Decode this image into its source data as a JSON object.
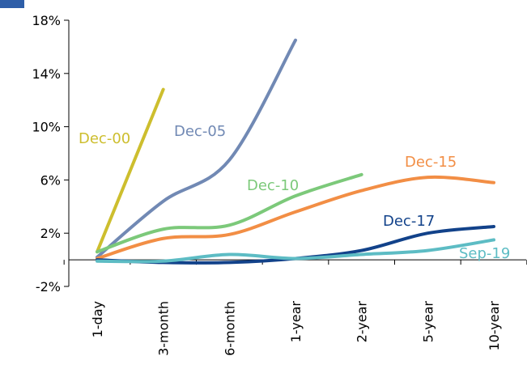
{
  "chart_data": {
    "type": "line",
    "title": "",
    "xlabel": "",
    "ylabel": "",
    "categories": [
      "1-day",
      "3-month",
      "6-month",
      "1-year",
      "2-year",
      "5-year",
      "10-year"
    ],
    "ylim": [
      -2,
      18
    ],
    "yticks": [
      -2,
      2,
      6,
      10,
      14,
      18
    ],
    "ytick_labels": [
      "-2%",
      "2%",
      "6%",
      "10%",
      "14%",
      "18%"
    ],
    "grid": false,
    "legend": "inline labels",
    "series": [
      {
        "name": "Dec-00",
        "color": "#CDBE2E",
        "values": [
          0.6,
          12.8,
          null,
          null,
          null,
          null,
          null
        ]
      },
      {
        "name": "Dec-05",
        "color": "#7189B4",
        "values": [
          0.2,
          4.4,
          7.5,
          16.5,
          null,
          null,
          null
        ]
      },
      {
        "name": "Dec-10",
        "color": "#7CC97A",
        "values": [
          0.6,
          2.3,
          2.6,
          4.8,
          6.4,
          null,
          null
        ]
      },
      {
        "name": "Dec-15",
        "color": "#F28E45",
        "values": [
          0.1,
          1.6,
          1.9,
          3.6,
          5.2,
          6.2,
          5.8
        ]
      },
      {
        "name": "Dec-17",
        "color": "#12428A",
        "values": [
          0.0,
          -0.2,
          -0.2,
          0.1,
          0.7,
          2.0,
          2.5
        ]
      },
      {
        "name": "Sep-19",
        "color": "#5DBCC4",
        "values": [
          -0.1,
          -0.1,
          0.4,
          0.1,
          0.4,
          0.7,
          1.5
        ]
      }
    ]
  },
  "colors": {
    "top_strip": "#2E5EA8",
    "axis": "#000000"
  }
}
